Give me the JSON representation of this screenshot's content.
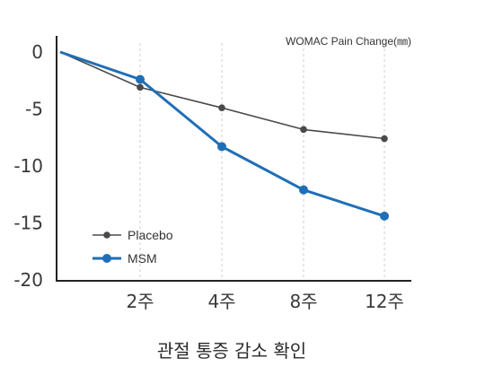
{
  "chart_data": {
    "type": "line",
    "caption": "관절 통증 감소 확인",
    "unit_label": "WOMAC Pain Change(㎜)",
    "categories": [
      "0",
      "2주",
      "4주",
      "8주",
      "12주"
    ],
    "x_tick_labels": [
      "2주",
      "4주",
      "8주",
      "12주"
    ],
    "ylim": [
      -20,
      0
    ],
    "y_ticks": [
      0,
      -5,
      -10,
      -15,
      -20
    ],
    "grid": "vertical dashed",
    "legend_position": "bottom-left",
    "series": [
      {
        "name": "Placebo",
        "color": "#4a4a4a",
        "values": [
          0,
          -3.1,
          -4.9,
          -6.8,
          -7.6
        ]
      },
      {
        "name": "MSM",
        "color": "#1f6fb7",
        "values": [
          0,
          -2.4,
          -8.3,
          -12.1,
          -14.4
        ]
      }
    ]
  }
}
